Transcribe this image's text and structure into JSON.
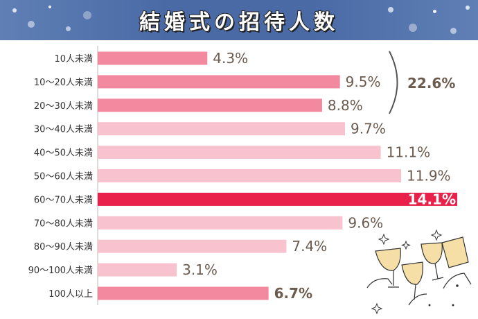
{
  "title": "結婚式の招待人数",
  "chart_data": {
    "type": "bar",
    "orientation": "horizontal",
    "title": "結婚式の招待人数",
    "unit": "%",
    "categories": [
      "10人未満",
      "10〜20人未満",
      "20〜30人未満",
      "30〜40人未満",
      "40〜50人未満",
      "50〜60人未満",
      "60〜70人未満",
      "70〜80人未満",
      "80〜90人未満",
      "90〜100人未満",
      "100人以上"
    ],
    "values": [
      4.3,
      9.5,
      8.8,
      9.7,
      11.1,
      11.9,
      14.1,
      9.6,
      7.4,
      3.1,
      6.7
    ],
    "value_labels": [
      "4.3%",
      "9.5%",
      "8.8%",
      "9.7%",
      "11.1%",
      "11.9%",
      "14.1%",
      "9.6%",
      "7.4%",
      "3.1%",
      "6.7%"
    ],
    "bar_colors": [
      "#f3899e",
      "#f3899e",
      "#f3899e",
      "#f8c3cf",
      "#f8c3cf",
      "#f8c3cf",
      "#e8204a",
      "#f8c3cf",
      "#f8c3cf",
      "#f8c3cf",
      "#f3899e"
    ],
    "bold_labels": [
      false,
      false,
      false,
      false,
      false,
      false,
      true,
      false,
      false,
      false,
      true
    ],
    "highlight_label_color": "#ffffff",
    "group_bracket": {
      "from": 0,
      "to": 2,
      "label": "22.6%"
    },
    "xlim": [
      0,
      14.1
    ],
    "grid": false
  }
}
